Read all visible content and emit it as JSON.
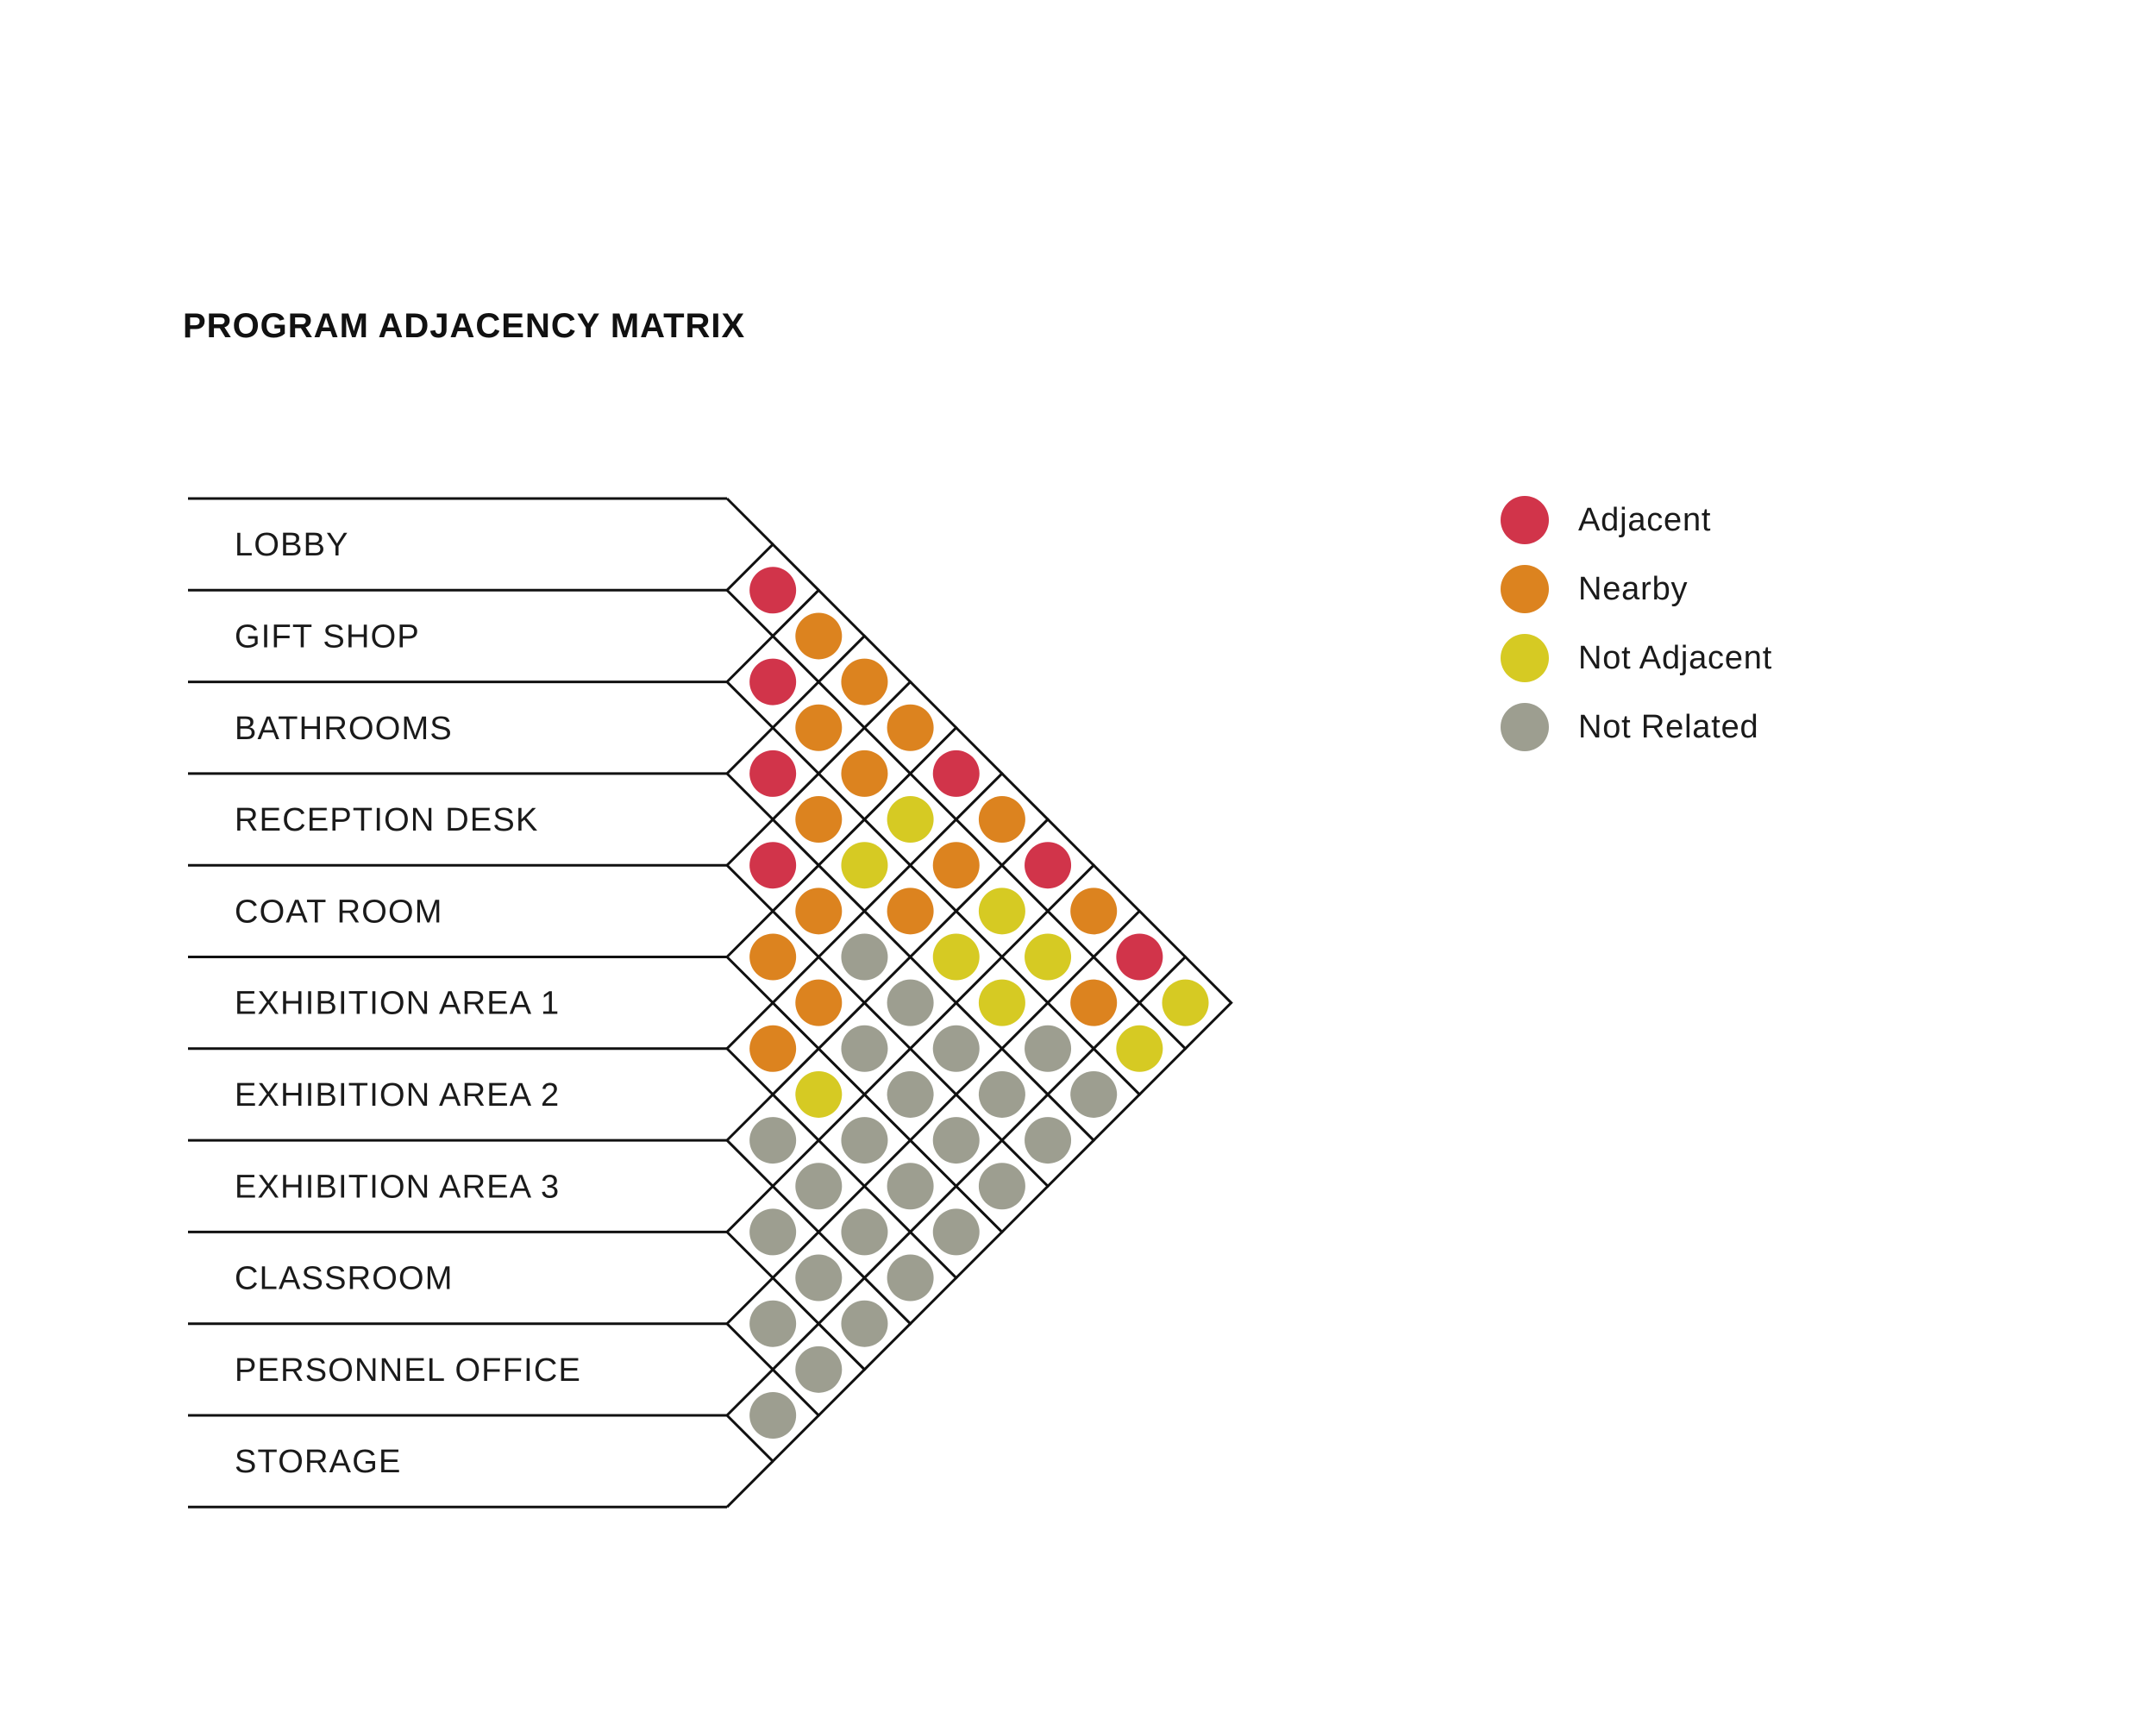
{
  "title": "PROGRAM ADJACENCY MATRIX",
  "rooms": [
    "LOBBY",
    "GIFT SHOP",
    "BATHROOMS",
    "RECEPTION DESK",
    "COAT ROOM",
    "EXHIBITION AREA 1",
    "EXHIBITION AREA 2",
    "EXHIBITION AREA 3",
    "CLASSROOM",
    "PERSONNEL OFFICE",
    "STORAGE"
  ],
  "legend": [
    {
      "key": "adjacent",
      "label": "Adjacent",
      "color": "#d1344a"
    },
    {
      "key": "nearby",
      "label": "Nearby",
      "color": "#dc831f"
    },
    {
      "key": "not_adjacent",
      "label": "Not Adjacent",
      "color": "#d6ca23"
    },
    {
      "key": "not_related",
      "label": "Not Related",
      "color": "#9d9e90"
    }
  ],
  "matrix": {
    "description": "Row k holds relationships between room i and room i+k (1-indexed gap k)",
    "by_gap": [
      [
        "adjacent",
        "adjacent",
        "adjacent",
        "adjacent",
        "nearby",
        "nearby",
        "not_related",
        "not_related",
        "not_related",
        "not_related"
      ],
      [
        "nearby",
        "nearby",
        "nearby",
        "nearby",
        "nearby",
        "not_adjacent",
        "not_related",
        "not_related",
        "not_related"
      ],
      [
        "nearby",
        "nearby",
        "not_adjacent",
        "not_related",
        "not_related",
        "not_related",
        "not_related",
        "not_related"
      ],
      [
        "nearby",
        "not_adjacent",
        "nearby",
        "not_related",
        "not_related",
        "not_related",
        "not_related"
      ],
      [
        "adjacent",
        "nearby",
        "not_adjacent",
        "not_related",
        "not_related",
        "not_related"
      ],
      [
        "nearby",
        "not_adjacent",
        "not_adjacent",
        "not_related",
        "not_related"
      ],
      [
        "adjacent",
        "not_adjacent",
        "not_related",
        "not_related"
      ],
      [
        "nearby",
        "nearby",
        "not_related"
      ],
      [
        "adjacent",
        "not_adjacent"
      ],
      [
        "not_adjacent"
      ]
    ]
  }
}
